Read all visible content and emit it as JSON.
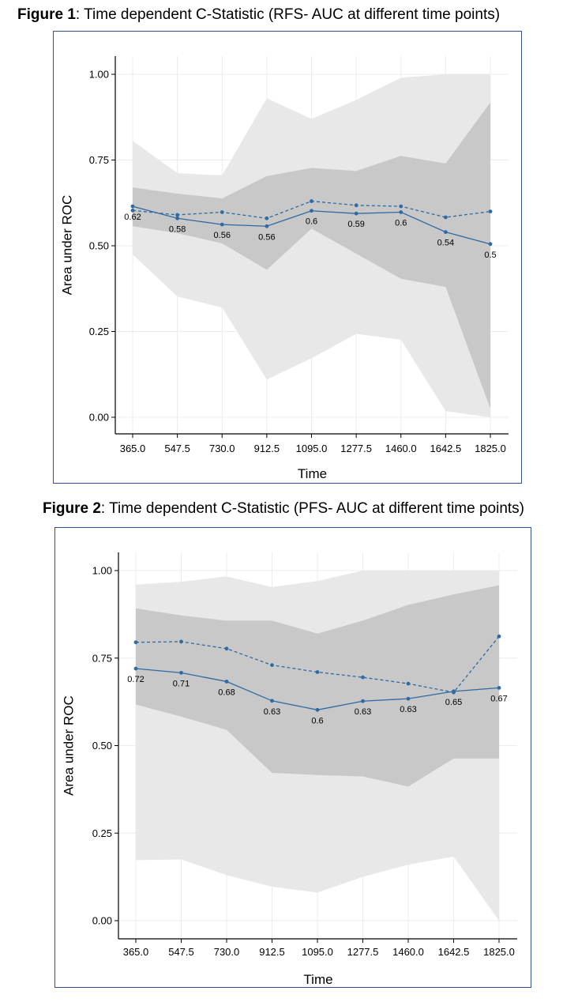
{
  "figures": [
    {
      "title_bold": "Figure 1",
      "title_rest": ": Time dependent C-Statistic (RFS- AUC at different time points)"
    },
    {
      "title_bold": "Figure 2",
      "title_rest": ": Time dependent C-Statistic (PFS- AUC at different time points)"
    }
  ],
  "chart_data": [
    {
      "type": "line",
      "xlabel": "Time",
      "ylabel": "Area under ROC",
      "x": [
        365.0,
        547.5,
        730.0,
        912.5,
        1095.0,
        1277.5,
        1460.0,
        1642.5,
        1825.0
      ],
      "x_tick_labels": [
        "365.0",
        "547.5",
        "730.0",
        "912.5",
        "1095.0",
        "1277.5",
        "1460.0",
        "1642.5",
        "1825.0"
      ],
      "y_ticks": [
        "0.00",
        "0.25",
        "0.50",
        "0.75",
        "1.00"
      ],
      "ylim": [
        0,
        1
      ],
      "grid": true,
      "series": [
        {
          "style": "solid",
          "values": [
            0.615,
            0.58,
            0.562,
            0.557,
            0.602,
            0.594,
            0.598,
            0.54,
            0.505
          ],
          "labels": [
            "0.62",
            "0.58",
            "0.56",
            "0.56",
            "0.6",
            "0.59",
            "0.6",
            "0.54",
            "0.5"
          ],
          "color": "#2f6aa3"
        },
        {
          "style": "dashed",
          "values": [
            0.603,
            0.59,
            0.598,
            0.58,
            0.63,
            0.618,
            0.615,
            0.583,
            0.6
          ],
          "color": "#2f6aa3"
        }
      ],
      "bands": [
        {
          "shade": "light",
          "lower": [
            0.475,
            0.352,
            0.32,
            0.11,
            0.172,
            0.243,
            0.226,
            0.018,
            0.0
          ],
          "upper": [
            0.806,
            0.712,
            0.705,
            0.93,
            0.87,
            0.925,
            0.99,
            1.0,
            1.0
          ],
          "color": "#e8e8e8"
        },
        {
          "shade": "dark",
          "lower": [
            0.557,
            0.537,
            0.507,
            0.43,
            0.55,
            0.477,
            0.404,
            0.38,
            0.025
          ],
          "upper": [
            0.67,
            0.652,
            0.638,
            0.703,
            0.727,
            0.718,
            0.762,
            0.74,
            0.918
          ],
          "color": "#c8c8c8"
        }
      ]
    },
    {
      "type": "line",
      "xlabel": "Time",
      "ylabel": "Area under ROC",
      "x": [
        365.0,
        547.5,
        730.0,
        912.5,
        1095.0,
        1277.5,
        1460.0,
        1642.5,
        1825.0
      ],
      "x_tick_labels": [
        "365.0",
        "547.5",
        "730.0",
        "912.5",
        "1095.0",
        "1277.5",
        "1460.0",
        "1642.5",
        "1825.0"
      ],
      "y_ticks": [
        "0.00",
        "0.25",
        "0.50",
        "0.75",
        "1.00"
      ],
      "ylim": [
        0,
        1
      ],
      "grid": true,
      "series": [
        {
          "style": "solid",
          "values": [
            0.72,
            0.708,
            0.683,
            0.628,
            0.602,
            0.627,
            0.634,
            0.655,
            0.665
          ],
          "labels": [
            "0.72",
            "0.71",
            "0.68",
            "0.63",
            "0.6",
            "0.63",
            "0.63",
            "0.65",
            "0.67"
          ],
          "color": "#2f6aa3"
        },
        {
          "style": "dashed",
          "values": [
            0.795,
            0.797,
            0.777,
            0.73,
            0.71,
            0.695,
            0.677,
            0.652,
            0.812
          ],
          "color": "#2f6aa3"
        }
      ],
      "bands": [
        {
          "shade": "light",
          "lower": [
            0.173,
            0.175,
            0.13,
            0.097,
            0.08,
            0.125,
            0.16,
            0.183,
            0.0
          ],
          "upper": [
            0.96,
            0.968,
            0.983,
            0.953,
            0.97,
            1.0,
            1.0,
            1.0,
            1.0
          ],
          "color": "#e8e8e8"
        },
        {
          "shade": "dark",
          "lower": [
            0.617,
            0.583,
            0.545,
            0.422,
            0.416,
            0.412,
            0.383,
            0.463,
            0.463
          ],
          "upper": [
            0.892,
            0.872,
            0.857,
            0.857,
            0.82,
            0.857,
            0.902,
            0.932,
            0.958
          ],
          "color": "#c8c8c8"
        }
      ]
    }
  ]
}
